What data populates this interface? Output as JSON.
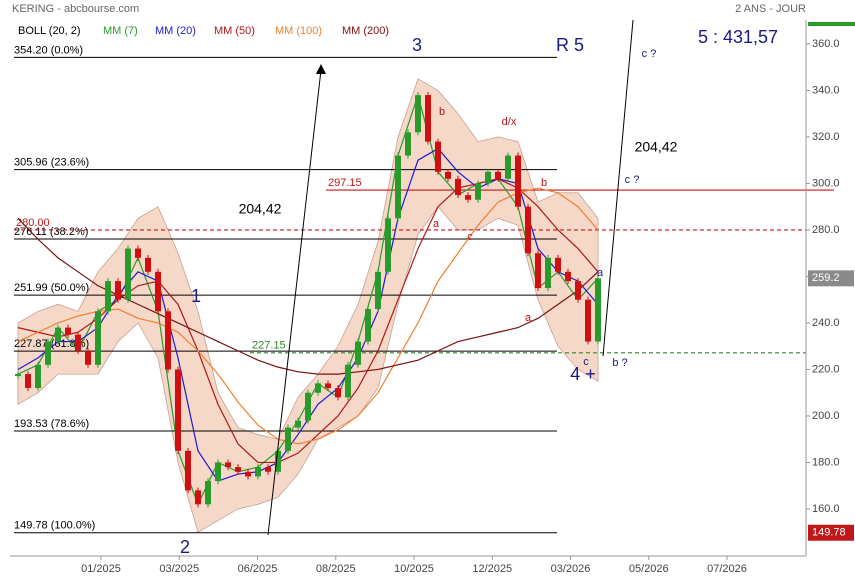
{
  "chart_data": {
    "type": "stock",
    "title": "KERING - abcbourse.com",
    "period": "2 ANS - JOUR",
    "x_labels": [
      "01/2025",
      "03/2025",
      "06/2025",
      "08/2025",
      "10/2025",
      "12/2025",
      "03/2026",
      "05/2026",
      "07/2026"
    ],
    "ylim": [
      140.2,
      370.3
    ],
    "yticks": [
      160,
      180,
      200,
      220,
      240,
      260,
      280,
      300,
      320,
      340,
      360
    ],
    "ytick_labels": [
      "160.0",
      "180.0",
      "200.0",
      "220.0",
      "240.0",
      "260.0",
      "280.0",
      "300.0",
      "320.0",
      "340.0",
      "360.0"
    ],
    "close": {
      "values": [
        218,
        212,
        222,
        232,
        238,
        235,
        228,
        222,
        245,
        258,
        250,
        272,
        268,
        262,
        245,
        220,
        185,
        168,
        162,
        172,
        180,
        178,
        176,
        174,
        178,
        176,
        185,
        195,
        198,
        210,
        214,
        212,
        208,
        222,
        232,
        246,
        262,
        285,
        312,
        322,
        338,
        318,
        305,
        302,
        295,
        293,
        300,
        305,
        302,
        312,
        290,
        270,
        255,
        268,
        262,
        258,
        250,
        232,
        259.2
      ],
      "up_color": "#2a9a2a",
      "down_color": "#d01010",
      "last_label": "259.2"
    },
    "bollinger": {
      "name": "BOLL (20, 2)",
      "color": "#f6d8c8",
      "upper": [
        240,
        245,
        248,
        245,
        262,
        272,
        285,
        290,
        270,
        245,
        210,
        195,
        192,
        190,
        208,
        218,
        230,
        248,
        275,
        320,
        345,
        340,
        330,
        318,
        320,
        318,
        292,
        296,
        296,
        285
      ],
      "lower": [
        205,
        210,
        218,
        218,
        218,
        232,
        240,
        225,
        180,
        150,
        155,
        160,
        162,
        165,
        175,
        190,
        195,
        200,
        212,
        248,
        278,
        290,
        280,
        280,
        285,
        282,
        250,
        230,
        220,
        215
      ]
    },
    "series": [
      {
        "name": "MM (7)",
        "color": "#2a9a2a",
        "values": [
          218,
          222,
          238,
          228,
          245,
          250,
          268,
          245,
          185,
          162,
          180,
          176,
          178,
          185,
          198,
          214,
          208,
          232,
          262,
          312,
          338,
          305,
          295,
          300,
          302,
          290,
          255,
          262,
          250,
          259.2
        ]
      },
      {
        "name": "MM (20)",
        "color": "#1c1ccc",
        "values": [
          220,
          225,
          232,
          232,
          238,
          252,
          262,
          258,
          225,
          185,
          172,
          175,
          176,
          180,
          192,
          205,
          212,
          225,
          245,
          285,
          310,
          315,
          305,
          298,
          302,
          300,
          272,
          262,
          258,
          248
        ]
      },
      {
        "name": "MM (50)",
        "color": "#b01818",
        "values": [
          238,
          236,
          234,
          236,
          242,
          250,
          256,
          258,
          248,
          228,
          205,
          188,
          180,
          180,
          184,
          192,
          200,
          212,
          228,
          250,
          272,
          290,
          298,
          300,
          302,
          298,
          290,
          280,
          272,
          262
        ]
      },
      {
        "name": "MM (100)",
        "color": "#f08030",
        "values": [
          232,
          236,
          240,
          243,
          245,
          246,
          242,
          240,
          236,
          228,
          218,
          206,
          196,
          190,
          188,
          190,
          194,
          200,
          210,
          225,
          240,
          258,
          270,
          282,
          292,
          296,
          298,
          296,
          290,
          280
        ]
      },
      {
        "name": "MM (200)",
        "color": "#7a1010",
        "values": [
          285,
          276,
          268,
          262,
          256,
          252,
          248,
          244,
          240,
          236,
          232,
          228,
          224,
          221,
          219,
          218,
          218,
          219,
          220,
          222,
          224,
          228,
          232,
          234,
          236,
          238,
          242,
          248,
          254,
          262
        ]
      }
    ],
    "levels": [
      {
        "value": 354.2,
        "label": "354.20  (0.0%)"
      },
      {
        "value": 305.96,
        "label": "305.96  (23.6%)"
      },
      {
        "value": 276.11,
        "label": "276.11  (38.2%)"
      },
      {
        "value": 251.99,
        "label": "251.99  (50.0%)"
      },
      {
        "value": 227.87,
        "label": "227.87  (61.8%)"
      },
      {
        "value": 193.53,
        "label": "193.53  (78.6%)"
      },
      {
        "value": 149.78,
        "label": "149.78  (100.0%)"
      }
    ],
    "lines": [
      {
        "value": 297.15,
        "label": "297.15",
        "color": "#c01818",
        "style": "solid"
      },
      {
        "value": 280,
        "label": "280.00",
        "color": "#c01818",
        "style": "dashed"
      },
      {
        "value": 227.15,
        "label": "227.15",
        "color": "#2a8a2a",
        "style": "dashed"
      }
    ],
    "min_label": {
      "value": 149.78,
      "label": "149.78"
    },
    "annotations": [
      "3",
      "R 5",
      "5 : 431,57",
      "204,42",
      "204,42",
      "1",
      "2",
      "4 +",
      "c ?",
      "c ?",
      "b ?",
      "b",
      "a",
      "c",
      "d/x",
      "b",
      "a",
      "a",
      "c"
    ]
  }
}
